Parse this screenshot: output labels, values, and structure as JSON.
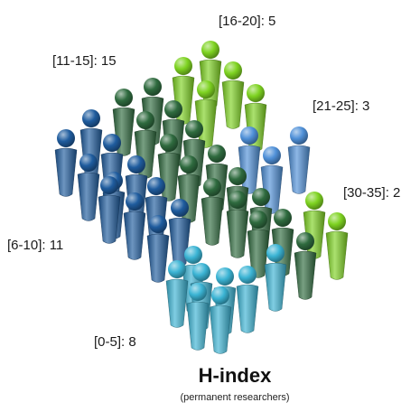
{
  "chart_data": {
    "type": "pictogram",
    "title": "H-index",
    "subtitle": "(permanent researchers)",
    "categories": [
      "[0-5]",
      "[6-10]",
      "[11-15]",
      "[16-20]",
      "[21-25]",
      "[30-35]"
    ],
    "values": [
      8,
      11,
      15,
      5,
      3,
      2
    ],
    "labels": [
      "[0-5]: 8",
      "[6-10]: 11",
      "[11-15]: 15",
      "[16-20]: 5",
      "[21-25]: 3",
      "[30-35]: 2"
    ],
    "colors": {
      "[0-5]": "#3bb4d4",
      "[6-10]": "#1f5c9e",
      "[11-15]": "#2f6b3f",
      "[16-20]": "#7ed321",
      "[21-25]": "#4f90d8",
      "[30-35]": "#7ed321"
    }
  }
}
